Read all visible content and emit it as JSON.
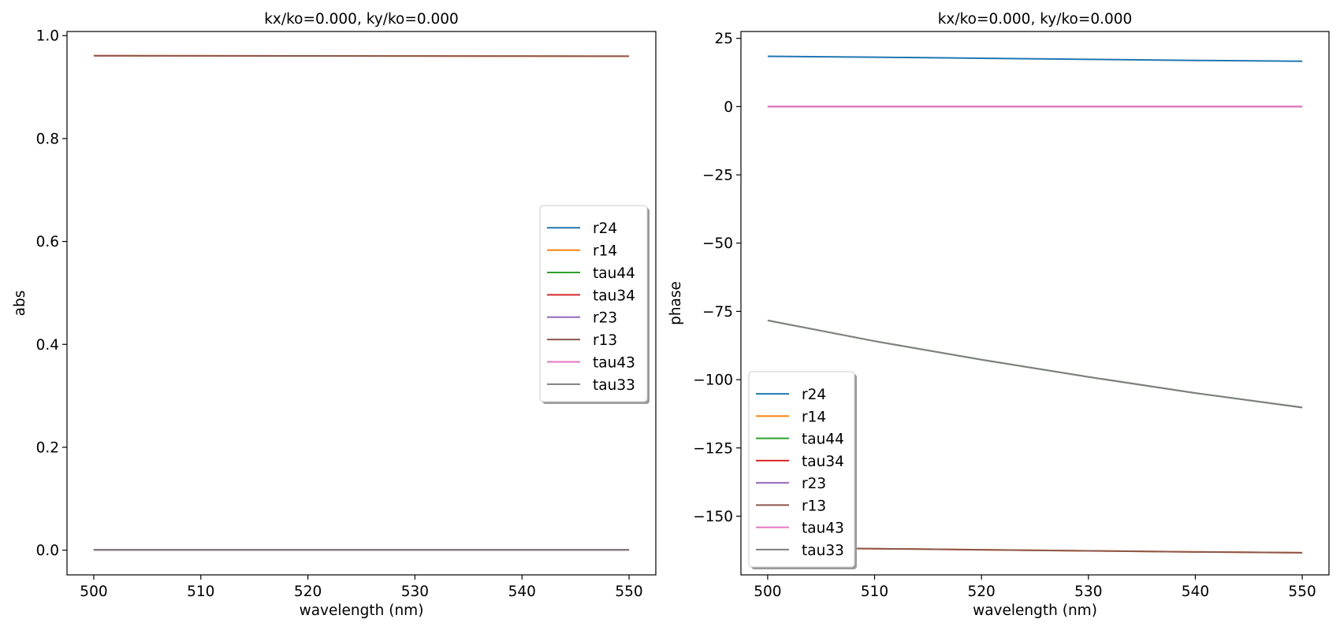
{
  "chart_data": [
    {
      "type": "line",
      "title": "kx/ko=0.000,  ky/ko=0.000",
      "xlabel": "wavelength (nm)",
      "ylabel": "abs",
      "xlim": [
        497.5,
        552.5
      ],
      "ylim": [
        -0.048,
        1.008
      ],
      "xticks": [
        500,
        510,
        520,
        530,
        540,
        550
      ],
      "yticks": [
        0.0,
        0.2,
        0.4,
        0.6,
        0.8,
        1.0
      ],
      "ytick_labels": [
        "0.0",
        "0.2",
        "0.4",
        "0.6",
        "0.8",
        "1.0"
      ],
      "grid": false,
      "legend_position": "center-right",
      "x": [
        500,
        510,
        520,
        530,
        540,
        550
      ],
      "series": [
        {
          "name": "r24",
          "color": "#1f77b4",
          "values": [
            0.0008,
            0.0008,
            0.0008,
            0.0008,
            0.0008,
            0.0008
          ]
        },
        {
          "name": "r14",
          "color": "#ff7f0e",
          "values": [
            0.961,
            0.9608,
            0.9606,
            0.9604,
            0.9602,
            0.96
          ]
        },
        {
          "name": "tau44",
          "color": "#2ca02c",
          "values": [
            0.0008,
            0.0008,
            0.0008,
            0.0008,
            0.0008,
            0.0008
          ]
        },
        {
          "name": "tau34",
          "color": "#d62728",
          "values": [
            0.0005,
            0.0005,
            0.0005,
            0.0005,
            0.0005,
            0.0005
          ]
        },
        {
          "name": "r23",
          "color": "#9467bd",
          "values": [
            0.0006,
            0.0006,
            0.0006,
            0.0006,
            0.0006,
            0.0006
          ]
        },
        {
          "name": "r13",
          "color": "#8c564b",
          "values": [
            0.961,
            0.9608,
            0.9606,
            0.9604,
            0.9602,
            0.96
          ]
        },
        {
          "name": "tau43",
          "color": "#e377c2",
          "values": [
            0.0004,
            0.0004,
            0.0004,
            0.0004,
            0.0004,
            0.0004
          ]
        },
        {
          "name": "tau33",
          "color": "#7f7f7f",
          "values": [
            0.0004,
            0.0004,
            0.0004,
            0.0004,
            0.0004,
            0.0004
          ]
        }
      ]
    },
    {
      "type": "line",
      "title": "kx/ko=0.000,  ky/ko=0.000",
      "xlabel": "wavelength (nm)",
      "ylabel": "phase",
      "xlim": [
        497.5,
        552.5
      ],
      "ylim": [
        -171.5,
        27.5
      ],
      "xticks": [
        500,
        510,
        520,
        530,
        540,
        550
      ],
      "yticks": [
        -150,
        -125,
        -100,
        -75,
        -50,
        -25,
        0,
        25
      ],
      "ytick_labels": [
        "−150",
        "−125",
        "−100",
        "−75",
        "−50",
        "−25",
        "0",
        "25"
      ],
      "grid": false,
      "legend_position": "lower-left",
      "x": [
        500,
        510,
        520,
        530,
        540,
        550
      ],
      "series": [
        {
          "name": "r24",
          "color": "#1f77b4",
          "values": [
            18.4,
            18.1,
            17.7,
            17.3,
            16.9,
            16.6
          ]
        },
        {
          "name": "r14",
          "color": "#ff7f0e",
          "values": [
            -161.6,
            -161.9,
            -162.3,
            -162.7,
            -163.1,
            -163.4
          ]
        },
        {
          "name": "tau44",
          "color": "#2ca02c",
          "values": [
            -78.3,
            -85.9,
            -92.7,
            -99.0,
            -104.9,
            -110.2
          ]
        },
        {
          "name": "tau34",
          "color": "#d62728",
          "values": [
            0.0,
            0.0,
            0.0,
            0.0,
            0.0,
            0.0
          ]
        },
        {
          "name": "r23",
          "color": "#9467bd",
          "values": [
            0.0,
            0.0,
            0.0,
            0.0,
            0.0,
            0.0
          ]
        },
        {
          "name": "r13",
          "color": "#8c564b",
          "values": [
            -161.6,
            -161.9,
            -162.3,
            -162.7,
            -163.1,
            -163.4
          ]
        },
        {
          "name": "tau43",
          "color": "#e377c2",
          "values": [
            0.0,
            0.0,
            0.0,
            0.0,
            0.0,
            0.0
          ]
        },
        {
          "name": "tau33",
          "color": "#7f7f7f",
          "values": [
            -78.3,
            -85.9,
            -92.7,
            -99.0,
            -104.9,
            -110.2
          ]
        }
      ]
    }
  ]
}
